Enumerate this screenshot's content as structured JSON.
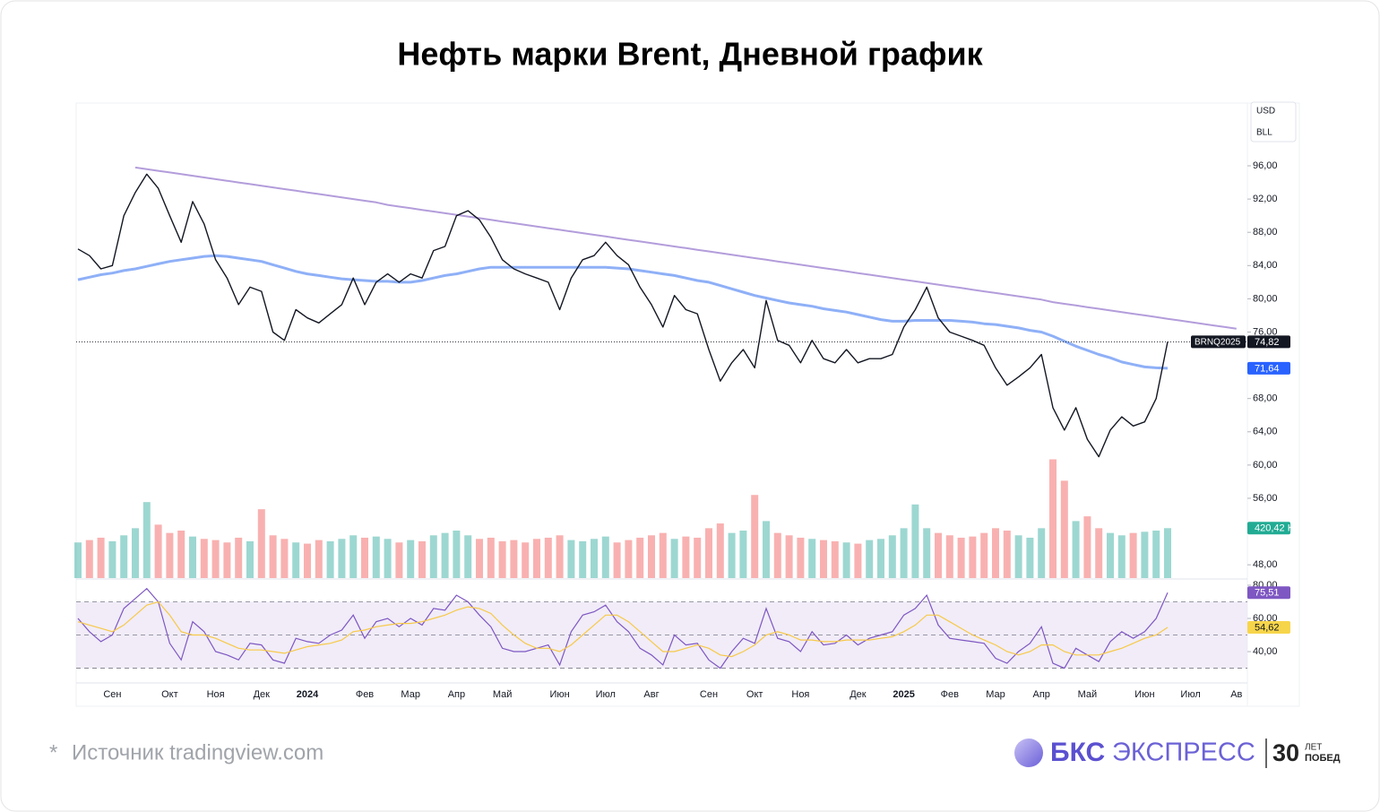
{
  "chart_data": {
    "type": "line",
    "title": "Нефть марки Brent, Дневной график",
    "currency": "USD",
    "unit": "BLL",
    "categories": [
      null,
      null,
      null,
      "Сен",
      null,
      null,
      null,
      null,
      "Окт",
      null,
      null,
      null,
      "Ноя",
      null,
      null,
      null,
      "Дек",
      null,
      null,
      null,
      "2024",
      null,
      null,
      null,
      null,
      "Фев",
      null,
      null,
      null,
      "Мар",
      null,
      null,
      null,
      "Апр",
      null,
      null,
      null,
      "Май",
      null,
      null,
      null,
      null,
      "Июн",
      null,
      null,
      null,
      "Июл",
      null,
      null,
      null,
      "Авг",
      null,
      null,
      null,
      null,
      "Сен",
      null,
      null,
      null,
      "Окт",
      null,
      null,
      null,
      "Ноя",
      null,
      null,
      null,
      null,
      "Дек",
      null,
      null,
      null,
      "2025",
      null,
      null,
      null,
      "Фев",
      null,
      null,
      null,
      "Мар",
      null,
      null,
      null,
      "Апр",
      null,
      null,
      null,
      "Май",
      null,
      null,
      null,
      null,
      "Июн",
      null,
      null,
      null,
      "Июл",
      null,
      null,
      null,
      "Ав"
    ],
    "series": [
      {
        "name": "BRNQ2025",
        "color": "#131722",
        "last_value_label": "74,82",
        "label_color": "#131722",
        "values": [
          86,
          85.2,
          83.6,
          84,
          90,
          92.8,
          95,
          93.3,
          90,
          86.8,
          91.7,
          89,
          84.7,
          82.5,
          79.3,
          81.4,
          80.9,
          76,
          75,
          78.7,
          77.7,
          77.1,
          78.2,
          79.3,
          82.5,
          79.3,
          82,
          83,
          82,
          83,
          82.5,
          85.8,
          86.3,
          90,
          90.6,
          89.5,
          87.4,
          84.7,
          83.6,
          83,
          82.5,
          82,
          78.7,
          82.5,
          84.7,
          85.2,
          86.8,
          85.2,
          84.1,
          81.4,
          79.3,
          76.6,
          80.4,
          78.7,
          78.2,
          73.9,
          70.1,
          72.3,
          73.9,
          71.7,
          79.8,
          75,
          74.4,
          72.3,
          75,
          72.8,
          72.3,
          73.9,
          72.3,
          72.8,
          72.8,
          73.3,
          76.6,
          78.7,
          81.4,
          77.7,
          76,
          75.5,
          75,
          74.4,
          71.7,
          69.6,
          70.6,
          71.7,
          73.3,
          66.9,
          64.2,
          66.9,
          63.1,
          61,
          64.2,
          65.8,
          64.7,
          65.2,
          68,
          74.82,
          null,
          null,
          null,
          null,
          null,
          null
        ]
      },
      {
        "color": "#8fb0f7",
        "last_value_label": "71,64",
        "label_color": "#2962ff",
        "values": [
          82.3,
          82.6,
          82.9,
          83.1,
          83.4,
          83.6,
          83.9,
          84.2,
          84.5,
          84.7,
          84.9,
          85.1,
          85.2,
          85.1,
          84.9,
          84.7,
          84.5,
          84.1,
          83.7,
          83.3,
          83,
          82.8,
          82.6,
          82.4,
          82.3,
          82.2,
          82.1,
          82.1,
          82,
          82,
          82.2,
          82.5,
          82.8,
          83,
          83.3,
          83.6,
          83.8,
          83.8,
          83.8,
          83.8,
          83.8,
          83.8,
          83.8,
          83.8,
          83.8,
          83.8,
          83.8,
          83.7,
          83.6,
          83.4,
          83.2,
          83,
          82.8,
          82.5,
          82.2,
          82,
          81.6,
          81.2,
          80.8,
          80.4,
          80.1,
          79.8,
          79.5,
          79.3,
          79.1,
          78.8,
          78.6,
          78.4,
          78.1,
          77.8,
          77.5,
          77.3,
          77.3,
          77.4,
          77.4,
          77.4,
          77.4,
          77.3,
          77.2,
          77,
          76.9,
          76.7,
          76.5,
          76.2,
          76,
          75.5,
          74.9,
          74.3,
          73.8,
          73.3,
          72.9,
          72.4,
          72.1,
          71.8,
          71.7,
          71.64,
          null,
          null,
          null,
          null,
          null,
          null
        ]
      },
      {
        "color": "#b39ddb",
        "values": [
          null,
          null,
          null,
          null,
          null,
          95.8,
          95.6,
          95.4,
          95.2,
          95,
          94.8,
          94.6,
          94.4,
          94.2,
          94,
          93.8,
          93.6,
          93.4,
          93.2,
          93,
          92.8,
          92.6,
          92.4,
          92.2,
          92,
          91.8,
          91.6,
          91.3,
          91.1,
          90.9,
          90.7,
          90.5,
          90.3,
          90.1,
          89.9,
          89.7,
          89.5,
          89.3,
          89.1,
          88.9,
          88.7,
          88.5,
          88.3,
          88.1,
          87.9,
          87.7,
          87.5,
          87.3,
          87.1,
          86.9,
          86.7,
          86.5,
          86.3,
          86.1,
          85.9,
          85.7,
          85.5,
          85.3,
          85.1,
          84.9,
          84.7,
          84.5,
          84.3,
          84.1,
          83.9,
          83.7,
          83.5,
          83.3,
          83.1,
          82.9,
          82.7,
          82.5,
          82.3,
          82.1,
          81.9,
          81.7,
          81.5,
          81.3,
          81.1,
          80.9,
          80.7,
          80.5,
          80.3,
          80.1,
          79.9,
          79.6,
          79.4,
          79.2,
          79,
          78.8,
          78.6,
          78.4,
          78.2,
          78,
          77.8,
          77.6,
          77.4,
          77.2,
          77,
          76.8,
          76.6,
          76.4
        ]
      }
    ],
    "ylim": [
      46.4,
      103.55
    ],
    "yticks": [
      {
        "value": 96,
        "label": "96,00"
      },
      {
        "value": 92,
        "label": "92,00"
      },
      {
        "value": 88,
        "label": "88,00"
      },
      {
        "value": 84,
        "label": "84,00"
      },
      {
        "value": 80,
        "label": "80,00"
      },
      {
        "value": 76,
        "label": "76,00"
      },
      {
        "value": 68,
        "label": "68,00"
      },
      {
        "value": 64,
        "label": "64,00"
      },
      {
        "value": 60,
        "label": "60,00"
      },
      {
        "value": 56,
        "label": "56,00"
      },
      {
        "value": 48,
        "label": "48,00"
      }
    ],
    "volume": {
      "up_color": "#26a69a",
      "down_color": "#ef5350",
      "ylim": [
        0,
        4000
      ],
      "last_value_label": "420,42 K",
      "label_color": "#22ab94",
      "values": [
        300,
        320,
        340,
        310,
        360,
        420,
        640,
        450,
        380,
        400,
        350,
        330,
        320,
        300,
        340,
        310,
        580,
        360,
        330,
        300,
        290,
        320,
        310,
        330,
        360,
        340,
        350,
        330,
        300,
        320,
        310,
        360,
        380,
        400,
        360,
        330,
        340,
        310,
        320,
        300,
        330,
        340,
        360,
        320,
        310,
        330,
        350,
        300,
        320,
        340,
        360,
        380,
        330,
        350,
        340,
        420,
        460,
        380,
        400,
        700,
        480,
        380,
        360,
        340,
        330,
        320,
        310,
        300,
        290,
        320,
        330,
        360,
        420,
        620,
        420,
        380,
        360,
        340,
        350,
        380,
        420,
        400,
        360,
        340,
        420,
        1000,
        820,
        480,
        520,
        420,
        380,
        360,
        380,
        390,
        400,
        420.42,
        null,
        null,
        null,
        null,
        null,
        null
      ]
    },
    "rsi": {
      "ylim": [
        22.2,
        82.7
      ],
      "levels": [
        70,
        50,
        30
      ],
      "band_color": "#ede7f6",
      "yticks": [
        {
          "value": 80,
          "label": "80,00"
        },
        {
          "value": 60,
          "label": "60,00"
        },
        {
          "value": 40,
          "label": "40,00"
        }
      ],
      "series": [
        {
          "color": "#7e57c2",
          "last_value_label": "75,51",
          "label_color": "#7e57c2",
          "values": [
            60,
            52,
            46,
            50,
            66,
            72,
            78,
            70,
            45,
            35,
            58,
            52,
            40,
            38,
            35,
            45,
            44,
            35,
            33,
            48,
            46,
            45,
            50,
            53,
            62,
            48,
            58,
            60,
            55,
            60,
            56,
            66,
            65,
            74,
            70,
            62,
            55,
            42,
            40,
            40,
            42,
            44,
            32,
            52,
            62,
            64,
            68,
            58,
            52,
            42,
            38,
            32,
            50,
            44,
            45,
            35,
            30,
            40,
            48,
            45,
            66,
            48,
            46,
            40,
            52,
            44,
            45,
            50,
            44,
            48,
            50,
            52,
            62,
            66,
            74,
            56,
            48,
            47,
            46,
            45,
            36,
            33,
            40,
            45,
            55,
            33,
            30,
            42,
            38,
            34,
            46,
            52,
            48,
            52,
            60,
            75.51,
            null,
            null,
            null,
            null,
            null,
            null
          ]
        },
        {
          "color": "#f7c948",
          "last_value_label": "54,62",
          "label_color": "#f7d54a",
          "values": [
            58,
            56,
            54,
            52,
            56,
            62,
            68,
            70,
            62,
            52,
            50,
            50,
            48,
            45,
            42,
            41,
            41,
            40,
            39,
            41,
            43,
            44,
            45,
            47,
            52,
            53,
            55,
            56,
            57,
            57,
            58,
            60,
            62,
            65,
            67,
            66,
            63,
            56,
            50,
            45,
            42,
            42,
            40,
            44,
            50,
            56,
            62,
            62,
            58,
            52,
            46,
            40,
            40,
            42,
            44,
            42,
            38,
            37,
            40,
            44,
            50,
            52,
            50,
            47,
            47,
            46,
            46,
            47,
            47,
            47,
            48,
            49,
            52,
            56,
            62,
            62,
            58,
            54,
            50,
            47,
            44,
            40,
            38,
            40,
            44,
            44,
            40,
            38,
            38,
            38,
            40,
            42,
            45,
            48,
            50,
            54.62,
            null,
            null,
            null,
            null,
            null,
            null
          ]
        }
      ]
    }
  },
  "footer": {
    "marker": "*",
    "source": "Источник tradingview.com",
    "brand": "БКС",
    "brand_sub": "ЭКСПРЕСС",
    "anniversary": "30",
    "anniversary_top": "ЛЕТ",
    "anniversary_bottom": "ПОБЕД"
  }
}
